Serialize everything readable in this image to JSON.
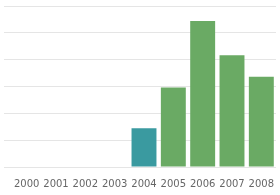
{
  "chart_data": {
    "type": "bar",
    "categories": [
      "2000",
      "2001",
      "2002",
      "2003",
      "2004",
      "2005",
      "2006",
      "2007",
      "2008"
    ],
    "values": [
      0,
      0,
      0,
      0,
      18,
      37,
      68,
      52,
      42
    ],
    "colors": [
      "#6aaa64",
      "#6aaa64",
      "#6aaa64",
      "#6aaa64",
      "#3a9aa0",
      "#6aaa64",
      "#6aaa64",
      "#6aaa64",
      "#6aaa64"
    ],
    "ylim": [
      0,
      75
    ],
    "yticks": [
      0,
      12.5,
      25,
      37.5,
      50,
      62.5,
      75
    ],
    "grid": true,
    "tick_labels": "x"
  }
}
